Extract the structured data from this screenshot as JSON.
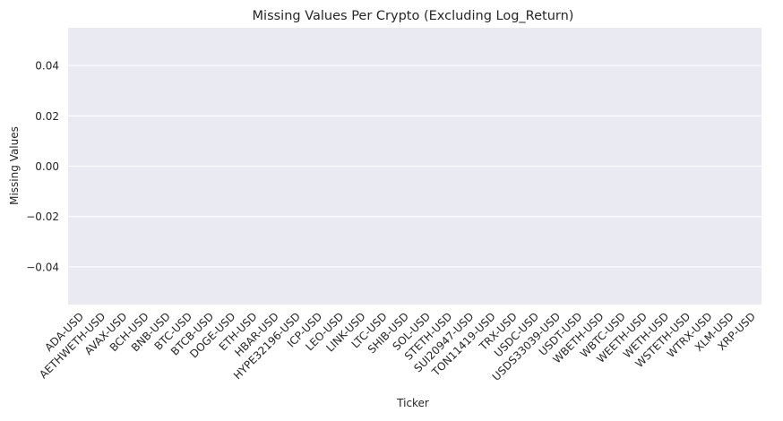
{
  "chart_data": {
    "type": "bar",
    "title": "Missing Values Per Crypto (Excluding Log_Return)",
    "xlabel": "Ticker",
    "ylabel": "Missing Values",
    "categories": [
      "ADA-USD",
      "AETHWETH-USD",
      "AVAX-USD",
      "BCH-USD",
      "BNB-USD",
      "BTC-USD",
      "BTCB-USD",
      "DOGE-USD",
      "ETH-USD",
      "HBAR-USD",
      "HYPE32196-USD",
      "ICP-USD",
      "LEO-USD",
      "LINK-USD",
      "LTC-USD",
      "SHIB-USD",
      "SOL-USD",
      "STETH-USD",
      "SUI20947-USD",
      "TON11419-USD",
      "TRX-USD",
      "USDC-USD",
      "USDS33039-USD",
      "USDT-USD",
      "WBETH-USD",
      "WBTC-USD",
      "WEETH-USD",
      "WETH-USD",
      "WSTETH-USD",
      "WTRX-USD",
      "XLM-USD",
      "XRP-USD"
    ],
    "values": [
      0,
      0,
      0,
      0,
      0,
      0,
      0,
      0,
      0,
      0,
      0,
      0,
      0,
      0,
      0,
      0,
      0,
      0,
      0,
      0,
      0,
      0,
      0,
      0,
      0,
      0,
      0,
      0,
      0,
      0,
      0,
      0
    ],
    "ylim": [
      -0.055,
      0.055
    ],
    "yticks": [
      0.04,
      0.02,
      0.0,
      -0.02,
      -0.04
    ],
    "ytick_labels": [
      "0.04",
      "0.02",
      "0.00",
      "−0.02",
      "−0.04"
    ],
    "grid": true,
    "colors": {
      "background": "#eaeaf2",
      "grid": "#ffffff",
      "bar": "#4c72b0"
    }
  }
}
